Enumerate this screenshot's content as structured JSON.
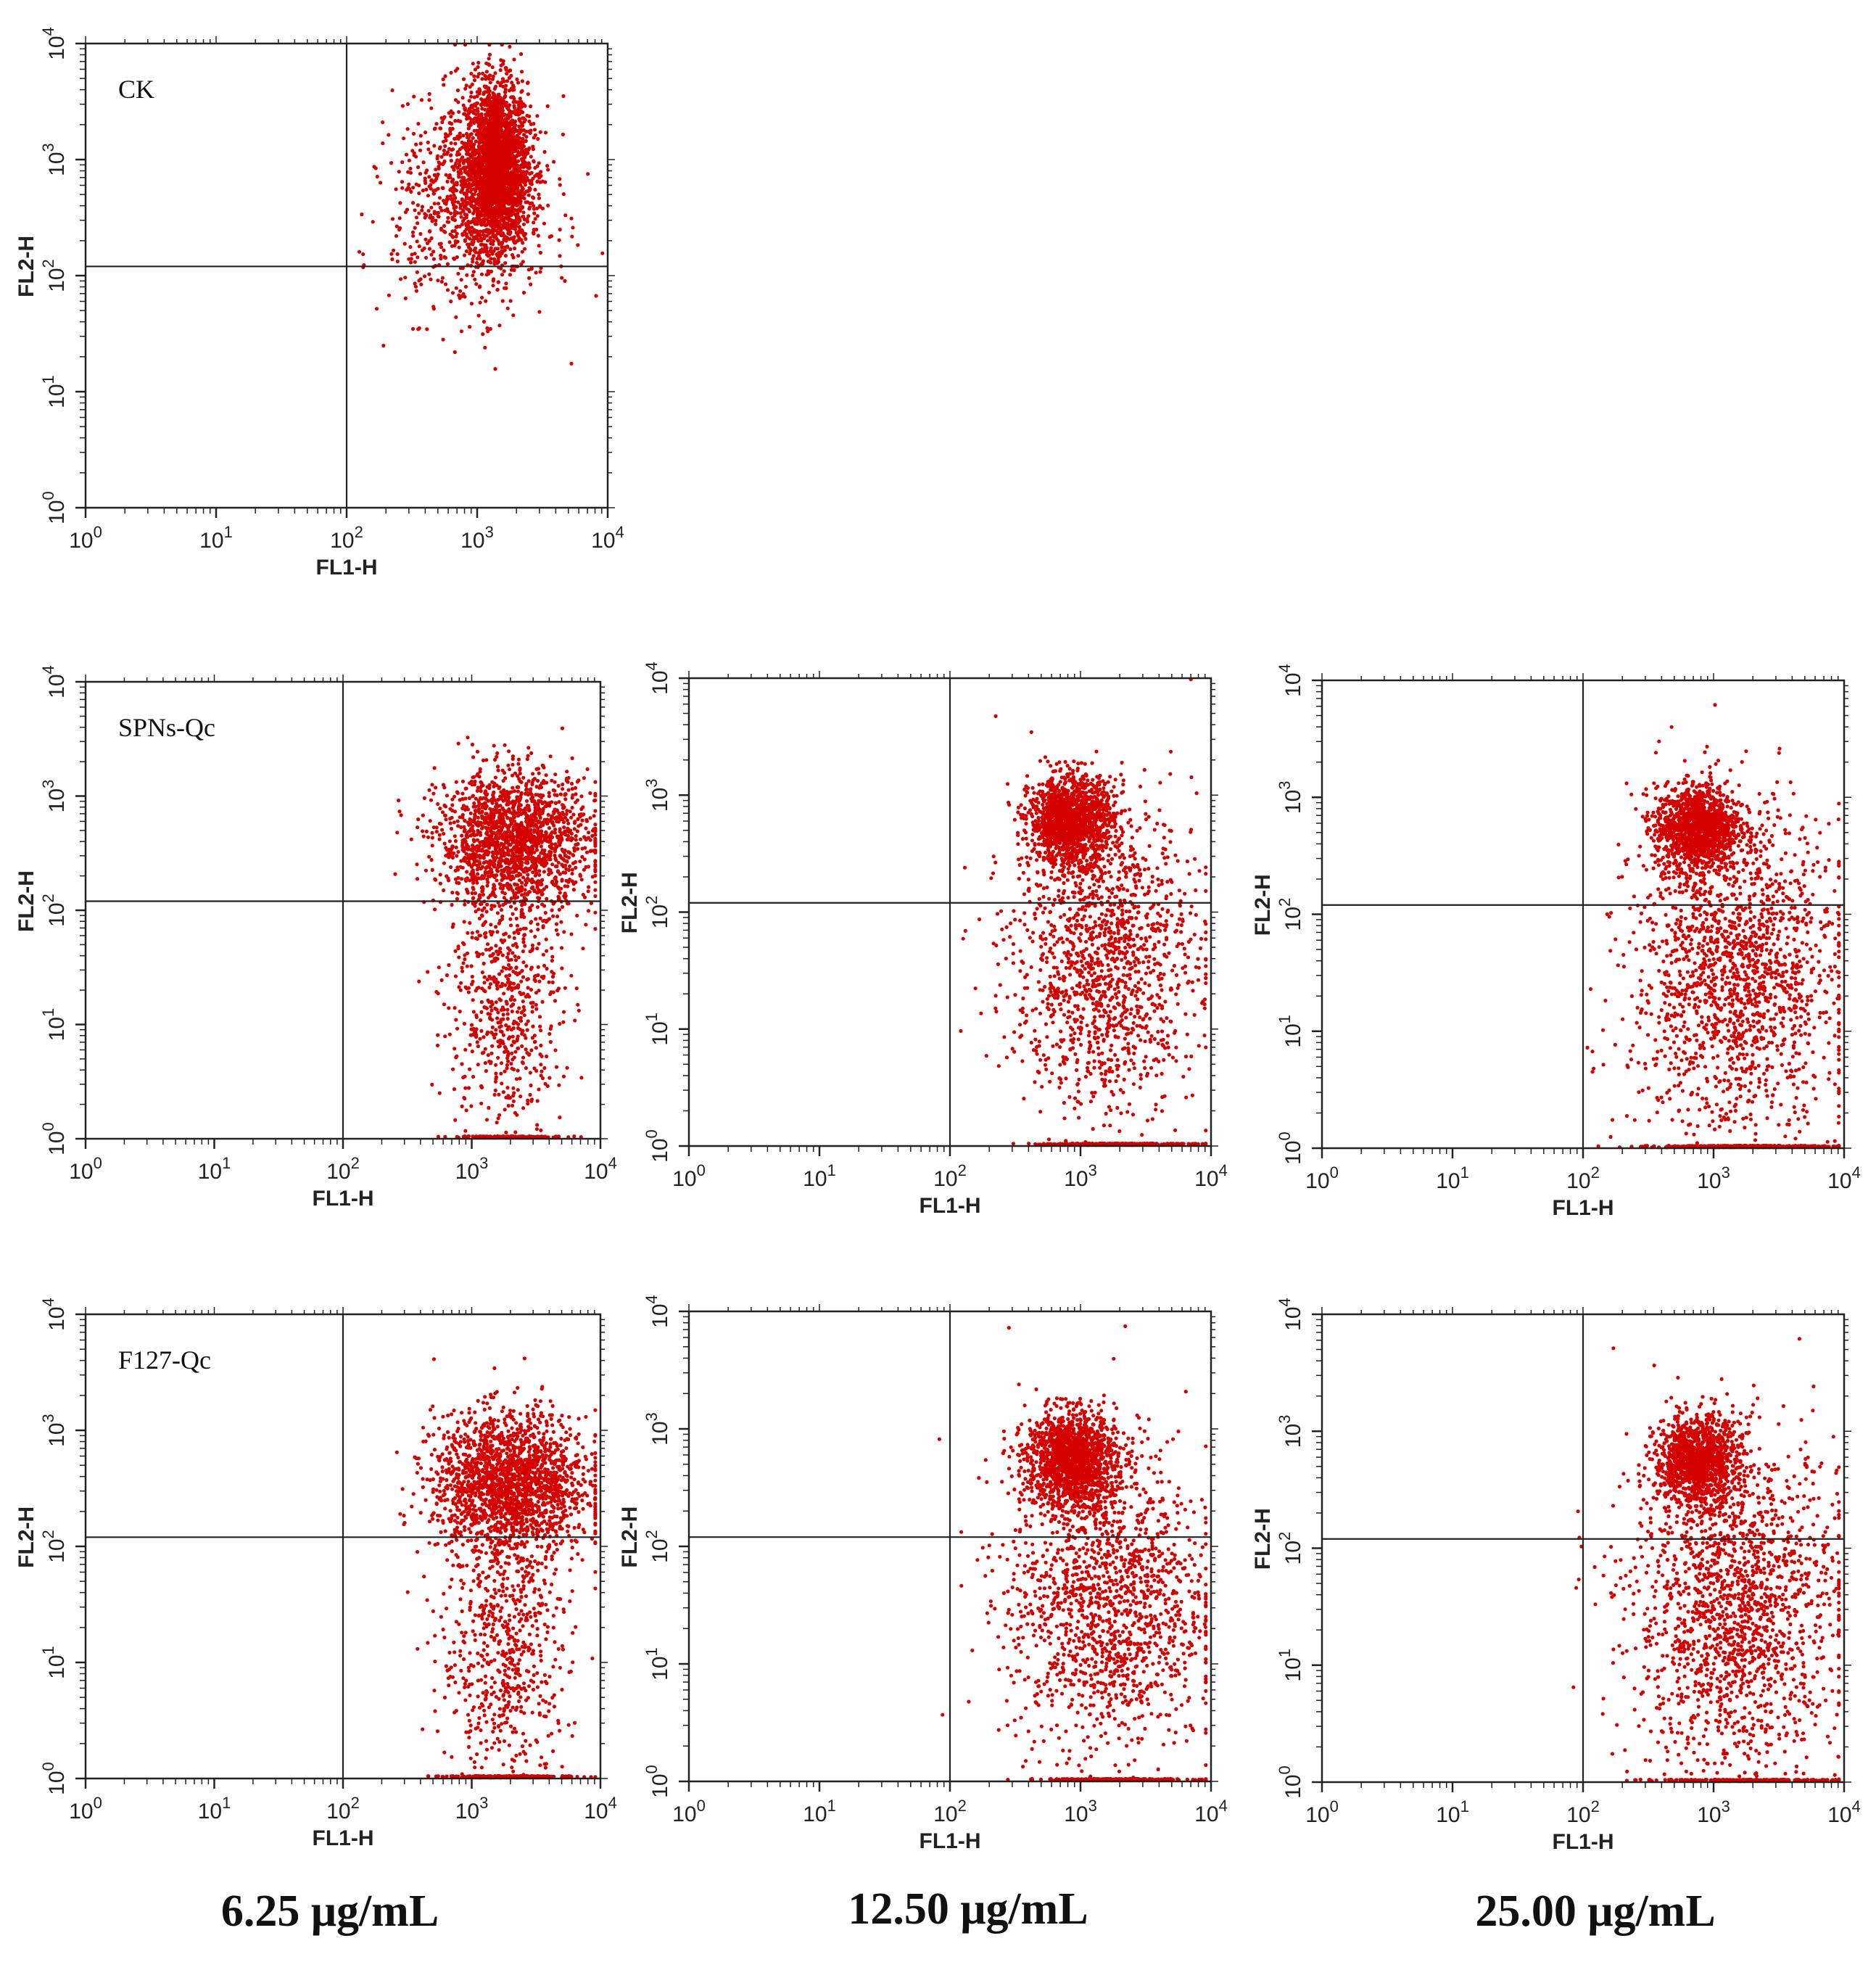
{
  "figure": {
    "concentration_labels": [
      "6.25 μg/mL",
      "12.50 μg/mL",
      "25.00 μg/mL"
    ],
    "point_color": "#d40000"
  },
  "chart_data": [
    {
      "type": "scatter",
      "panel": "CK",
      "label": "CK",
      "xlabel": "FL1-H",
      "ylabel": "FL2-H",
      "scale": "log10",
      "xlim": [
        1,
        10000
      ],
      "ylim": [
        1,
        10000
      ],
      "xticks": [
        "10^0",
        "10^1",
        "10^2",
        "10^3",
        "10^4"
      ],
      "yticks": [
        "10^0",
        "10^1",
        "10^2",
        "10^3",
        "10^4"
      ],
      "quadrant_gate": {
        "x": 100,
        "y": 120
      },
      "clusters": [
        {
          "x_center": 1400,
          "y_center": 900,
          "x_spread_decades": 0.12,
          "y_spread_decades": 0.35,
          "n": 2600
        },
        {
          "x_center": 900,
          "y_center": 400,
          "x_spread_decades": 0.3,
          "y_spread_decades": 0.45,
          "n": 900
        }
      ]
    },
    {
      "type": "scatter",
      "panel": "SPNs-Qc 6.25",
      "label": "SPNs-Qc",
      "xlabel": "FL1-H",
      "ylabel": "FL2-H",
      "scale": "log10",
      "xlim": [
        1,
        10000
      ],
      "ylim": [
        1,
        10000
      ],
      "xticks": [
        "10^0",
        "10^1",
        "10^2",
        "10^3",
        "10^4"
      ],
      "yticks": [
        "10^0",
        "10^1",
        "10^2",
        "10^3",
        "10^4"
      ],
      "quadrant_gate": {
        "x": 100,
        "y": 120
      },
      "clusters": [
        {
          "x_center": 2200,
          "y_center": 400,
          "x_spread_decades": 0.3,
          "y_spread_decades": 0.3,
          "n": 1800
        },
        {
          "x_center": 1800,
          "y_center": 15,
          "x_spread_decades": 0.22,
          "y_spread_decades": 0.55,
          "n": 600
        },
        {
          "x_center": 2000,
          "y_center": 1,
          "x_spread_decades": 0.2,
          "y_spread_decades": 0.0,
          "n": 150
        }
      ]
    },
    {
      "type": "scatter",
      "panel": "SPNs-Qc 12.50",
      "label": "",
      "xlabel": "FL1-H",
      "ylabel": "FL2-H",
      "scale": "log10",
      "xlim": [
        1,
        10000
      ],
      "ylim": [
        1,
        10000
      ],
      "xticks": [
        "10^0",
        "10^1",
        "10^2",
        "10^3",
        "10^4"
      ],
      "yticks": [
        "10^0",
        "10^1",
        "10^2",
        "10^3",
        "10^4"
      ],
      "quadrant_gate": {
        "x": 100,
        "y": 120
      },
      "clusters": [
        {
          "x_center": 850,
          "y_center": 600,
          "x_spread_decades": 0.16,
          "y_spread_decades": 0.18,
          "n": 1500
        },
        {
          "x_center": 1500,
          "y_center": 40,
          "x_spread_decades": 0.35,
          "y_spread_decades": 0.65,
          "n": 1400
        },
        {
          "x_center": 2000,
          "y_center": 1,
          "x_spread_decades": 0.3,
          "y_spread_decades": 0.0,
          "n": 200
        }
      ]
    },
    {
      "type": "scatter",
      "panel": "SPNs-Qc 25.00",
      "label": "",
      "xlabel": "FL1-H",
      "ylabel": "FL2-H",
      "scale": "log10",
      "xlim": [
        1,
        10000
      ],
      "ylim": [
        1,
        10000
      ],
      "xticks": [
        "10^0",
        "10^1",
        "10^2",
        "10^3",
        "10^4"
      ],
      "yticks": [
        "10^0",
        "10^1",
        "10^2",
        "10^3",
        "10^4"
      ],
      "quadrant_gate": {
        "x": 100,
        "y": 120
      },
      "clusters": [
        {
          "x_center": 750,
          "y_center": 550,
          "x_spread_decades": 0.16,
          "y_spread_decades": 0.18,
          "n": 1300
        },
        {
          "x_center": 1500,
          "y_center": 30,
          "x_spread_decades": 0.4,
          "y_spread_decades": 0.7,
          "n": 1700
        },
        {
          "x_center": 2000,
          "y_center": 1,
          "x_spread_decades": 0.35,
          "y_spread_decades": 0.0,
          "n": 250
        }
      ]
    },
    {
      "type": "scatter",
      "panel": "F127-Qc 6.25",
      "label": "F127-Qc",
      "xlabel": "FL1-H",
      "ylabel": "FL2-H",
      "scale": "log10",
      "xlim": [
        1,
        10000
      ],
      "ylim": [
        1,
        10000
      ],
      "xticks": [
        "10^0",
        "10^1",
        "10^2",
        "10^3",
        "10^4"
      ],
      "yticks": [
        "10^0",
        "10^1",
        "10^2",
        "10^3",
        "10^4"
      ],
      "quadrant_gate": {
        "x": 100,
        "y": 120
      },
      "clusters": [
        {
          "x_center": 2000,
          "y_center": 350,
          "x_spread_decades": 0.3,
          "y_spread_decades": 0.3,
          "n": 1900
        },
        {
          "x_center": 1800,
          "y_center": 12,
          "x_spread_decades": 0.25,
          "y_spread_decades": 0.6,
          "n": 650
        },
        {
          "x_center": 2000,
          "y_center": 1,
          "x_spread_decades": 0.25,
          "y_spread_decades": 0.0,
          "n": 180
        }
      ]
    },
    {
      "type": "scatter",
      "panel": "F127-Qc 12.50",
      "label": "",
      "xlabel": "FL1-H",
      "ylabel": "FL2-H",
      "scale": "log10",
      "xlim": [
        1,
        10000
      ],
      "ylim": [
        1,
        10000
      ],
      "xticks": [
        "10^0",
        "10^1",
        "10^2",
        "10^3",
        "10^4"
      ],
      "yticks": [
        "10^0",
        "10^1",
        "10^2",
        "10^3",
        "10^4"
      ],
      "quadrant_gate": {
        "x": 100,
        "y": 120
      },
      "clusters": [
        {
          "x_center": 850,
          "y_center": 550,
          "x_spread_decades": 0.17,
          "y_spread_decades": 0.2,
          "n": 1500
        },
        {
          "x_center": 1600,
          "y_center": 35,
          "x_spread_decades": 0.38,
          "y_spread_decades": 0.65,
          "n": 1500
        },
        {
          "x_center": 2000,
          "y_center": 1,
          "x_spread_decades": 0.3,
          "y_spread_decades": 0.0,
          "n": 220
        }
      ]
    },
    {
      "type": "scatter",
      "panel": "F127-Qc 25.00",
      "label": "",
      "xlabel": "FL1-H",
      "ylabel": "FL2-H",
      "scale": "log10",
      "xlim": [
        1,
        10000
      ],
      "ylim": [
        1,
        10000
      ],
      "xticks": [
        "10^0",
        "10^1",
        "10^2",
        "10^3",
        "10^4"
      ],
      "yticks": [
        "10^0",
        "10^1",
        "10^2",
        "10^3",
        "10^4"
      ],
      "quadrant_gate": {
        "x": 100,
        "y": 120
      },
      "clusters": [
        {
          "x_center": 750,
          "y_center": 550,
          "x_spread_decades": 0.16,
          "y_spread_decades": 0.18,
          "n": 1300
        },
        {
          "x_center": 1500,
          "y_center": 30,
          "x_spread_decades": 0.4,
          "y_spread_decades": 0.7,
          "n": 1700
        },
        {
          "x_center": 2000,
          "y_center": 1,
          "x_spread_decades": 0.35,
          "y_spread_decades": 0.0,
          "n": 250
        }
      ]
    }
  ]
}
